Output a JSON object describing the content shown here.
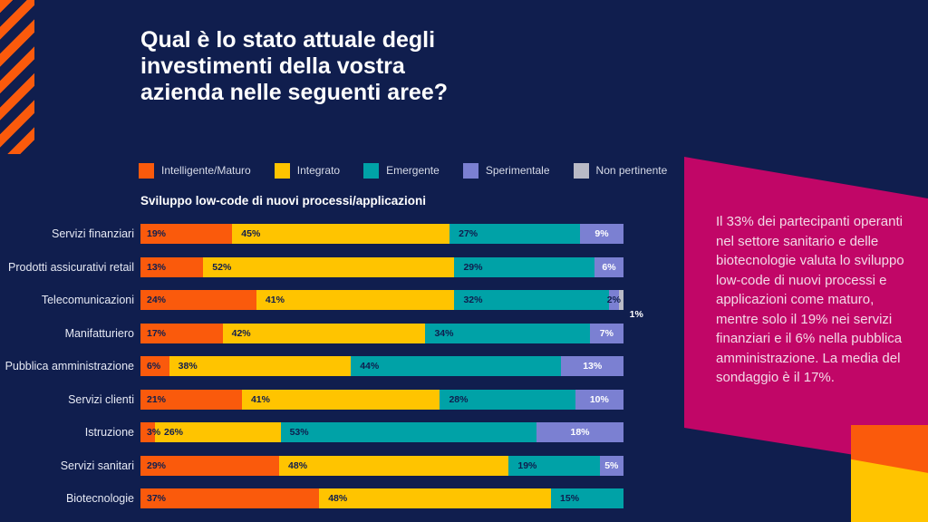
{
  "page": {
    "background": "#101E4E"
  },
  "title": {
    "line1": "Qual è lo stato attuale degli",
    "line2": "investimenti della vostra",
    "line3": "azienda nelle seguenti aree?"
  },
  "chart_data": {
    "type": "bar",
    "orientation": "horizontal-stacked",
    "subtitle": "Sviluppo low-code di nuovi processi/applicazioni",
    "unit": "%",
    "xlim": [
      0,
      100
    ],
    "legend_position": "top",
    "grid": false,
    "categories": [
      "Servizi finanziari",
      "Prodotti assicurativi retail",
      "Telecomunicazioni",
      "Manifatturiero",
      "Pubblica amministrazione",
      "Servizi clienti",
      "Istruzione",
      "Servizi sanitari",
      "Biotecnologie"
    ],
    "series": [
      {
        "name": "Intelligente/Maturo",
        "color": "#FA5A0C",
        "label_mode": "dark",
        "values": [
          19,
          13,
          24,
          17,
          6,
          21,
          3,
          29,
          37
        ]
      },
      {
        "name": "Integrato",
        "color": "#FFC400",
        "label_mode": "dark",
        "values": [
          45,
          52,
          41,
          42,
          38,
          41,
          26,
          48,
          48
        ]
      },
      {
        "name": "Emergente",
        "color": "#00A2A7",
        "label_mode": "dark",
        "values": [
          27,
          29,
          32,
          34,
          44,
          28,
          53,
          19,
          15
        ]
      },
      {
        "name": "Sperimentale",
        "color": "#7B80D2",
        "label_mode": "light",
        "values": [
          9,
          6,
          2,
          7,
          13,
          10,
          18,
          5,
          0
        ]
      },
      {
        "name": "Non pertinente",
        "color": "#B9BAC6",
        "label_mode": "below",
        "values": [
          0,
          0,
          1,
          0,
          0,
          0,
          0,
          0,
          0
        ]
      }
    ],
    "label_overrides": [
      {
        "category": "Telecomunicazioni",
        "series": "Sperimentale",
        "mode": "dark"
      }
    ]
  },
  "callout": {
    "text": "Il 33% dei partecipanti operanti nel settore sanitario e delle biotecnologie valuta lo sviluppo low-code di nuovi processi e applicazioni come maturo, mentre solo il 19% nei servizi finanziari e il 6% nella pubblica amministrazione. La media del sondaggio è il 17%.",
    "background": "#C10667",
    "text_color": "#F3D9E7"
  },
  "decor": {
    "stripe_color": "#FA5A0C",
    "corner_orange": "#FA5A0C",
    "corner_yellow": "#FFC400"
  }
}
